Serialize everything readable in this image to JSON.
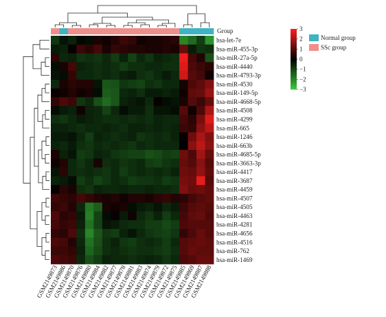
{
  "chart_data": {
    "type": "heatmap",
    "group_label": "Group",
    "rows": [
      "hsa-let-7e",
      "hsa-miR-455-3p",
      "hsa-miR-27a-5p",
      "hsa-miR-4440",
      "hsa-miR-4793-3p",
      "hsa-miR-4530",
      "hsa-miR-149-5p",
      "hsa-miR-4668-5p",
      "hsa-miR-4508",
      "hsa-miR-4299",
      "hsa-miR-665",
      "hsa-miR-1246",
      "hsa-miR-663b",
      "hsa-miR-4685-5p",
      "hsa-miR-3663-3p",
      "hsa-miR-4417",
      "hsa-miR-3687",
      "hsa-miR-4459",
      "hsa-miR-4507",
      "hsa-miR-4505",
      "hsa-miR-4463",
      "hsa-miR-4281",
      "hsa-miR-4656",
      "hsa-miR-4516",
      "hsa-miR-762",
      "hsa-miR-1469"
    ],
    "columns": [
      "GSM2149873",
      "GSM2149886",
      "GSM2149870",
      "GSM2149876",
      "GSM2149880",
      "GSM2149884",
      "GSM2149882",
      "GSM2149877",
      "GSM2149878",
      "GSM2149881",
      "GSM2149883",
      "GSM2149874",
      "GSM2149879",
      "GSM2149872",
      "GSM2149875",
      "GSM2149885",
      "GSM2149869",
      "GSM2149887",
      "GSM2149888"
    ],
    "column_groups": [
      "SSc group",
      "Normal group",
      "SSc group",
      "SSc group",
      "SSc group",
      "SSc group",
      "SSc group",
      "SSc group",
      "SSc group",
      "SSc group",
      "SSc group",
      "SSc group",
      "SSc group",
      "SSc group",
      "SSc group",
      "Normal group",
      "Normal group",
      "Normal group",
      "Normal group"
    ],
    "groups": [
      {
        "name": "Normal group",
        "color": "#3fb3c2"
      },
      {
        "name": "SSc group",
        "color": "#ef8f8c"
      }
    ],
    "color_scale": {
      "min": -3,
      "max": 3,
      "ticks": [
        "3",
        "2",
        "1",
        "0",
        "−1",
        "−2",
        "−3"
      ],
      "low_color": "#3cc73c",
      "mid_color": "#000000",
      "high_color": "#ff1f1f"
    },
    "values": [
      [
        -0.8,
        -0.3,
        -0.5,
        -0.1,
        -0.2,
        0.3,
        0.2,
        0.4,
        0.7,
        0.6,
        0.2,
        0.3,
        0.3,
        0.4,
        0.5,
        -2.0,
        -1.6,
        -0.9,
        -2.2
      ],
      [
        -0.4,
        -0.5,
        0.1,
        0.7,
        0.5,
        0.8,
        0.3,
        0.6,
        0.5,
        0.4,
        0.4,
        0.3,
        0.3,
        0.4,
        0.3,
        1.2,
        -0.4,
        -0.8,
        -0.7
      ],
      [
        0.5,
        -0.6,
        -0.5,
        -0.8,
        -0.7,
        -0.8,
        -0.6,
        -0.9,
        -0.5,
        -1.0,
        -0.6,
        -0.8,
        -0.5,
        -0.6,
        -0.7,
        2.8,
        0.8,
        0.4,
        -1.2
      ],
      [
        -0.2,
        0.3,
        0.8,
        -0.5,
        -0.6,
        -0.7,
        -0.6,
        -0.7,
        -0.9,
        -0.7,
        -0.7,
        -0.6,
        -0.6,
        -0.7,
        -0.7,
        2.6,
        0.9,
        0.7,
        0.5
      ],
      [
        -0.3,
        -0.2,
        0.6,
        -0.6,
        -0.6,
        -0.7,
        -0.6,
        -0.7,
        -0.5,
        -0.4,
        -0.7,
        -0.8,
        -0.6,
        -0.4,
        -0.6,
        2.4,
        1.0,
        0.8,
        0.2
      ],
      [
        -0.6,
        0.3,
        0.5,
        0.4,
        0.4,
        -0.3,
        -1.3,
        -1.2,
        -0.8,
        -0.9,
        -1.0,
        -0.7,
        -0.8,
        -0.6,
        -0.6,
        0.3,
        0.9,
        1.1,
        1.5
      ],
      [
        0.1,
        0.2,
        0.4,
        0.2,
        0.3,
        -0.2,
        -1.4,
        -1.3,
        -0.6,
        -0.5,
        -0.7,
        -0.4,
        -0.4,
        -0.5,
        -0.4,
        0.2,
        1.1,
        1.2,
        1.8
      ],
      [
        0.6,
        0.9,
        0.7,
        -0.8,
        -0.6,
        -1.2,
        -1.6,
        -1.3,
        -0.5,
        -0.4,
        -0.3,
        -0.6,
        0.1,
        -0.2,
        -0.3,
        0.3,
        1.0,
        0.7,
        1.2
      ],
      [
        -0.2,
        -0.4,
        -0.5,
        0.2,
        -0.5,
        -0.6,
        -1.0,
        -0.6,
        -0.2,
        -0.4,
        -0.4,
        -0.7,
        -0.3,
        -0.3,
        -0.2,
        1.0,
        0.2,
        0.9,
        2.0
      ],
      [
        -0.7,
        -0.8,
        -0.6,
        -0.4,
        -0.5,
        -0.6,
        -0.7,
        -0.7,
        -0.6,
        -0.7,
        -0.6,
        -0.7,
        -0.5,
        -0.6,
        -0.6,
        0.8,
        0.5,
        1.4,
        2.6
      ],
      [
        -0.5,
        -0.5,
        -0.6,
        -0.7,
        -0.6,
        -0.6,
        -0.5,
        -0.6,
        -0.7,
        -0.5,
        -0.5,
        -0.6,
        -0.5,
        -0.6,
        -0.5,
        0.7,
        0.6,
        1.6,
        2.2
      ],
      [
        -0.4,
        -0.4,
        -0.3,
        -0.6,
        -0.9,
        -0.5,
        -0.6,
        -0.7,
        -0.6,
        -0.5,
        -0.8,
        -0.7,
        -0.6,
        -0.7,
        -0.5,
        0.1,
        1.3,
        2.0,
        1.5
      ],
      [
        -0.5,
        -0.6,
        -0.4,
        -0.7,
        -0.8,
        -0.6,
        -0.7,
        -0.6,
        -0.7,
        -0.8,
        -0.6,
        -0.7,
        -0.6,
        -0.6,
        -0.6,
        0.0,
        1.6,
        2.2,
        1.6
      ],
      [
        0.3,
        -0.5,
        -0.3,
        -0.9,
        -0.8,
        -0.5,
        -0.6,
        -0.8,
        -0.9,
        -1.0,
        -1.0,
        -1.2,
        -1.1,
        -0.9,
        -1.0,
        1.3,
        0.9,
        1.9,
        1.2
      ],
      [
        0.2,
        0.4,
        -0.6,
        -0.8,
        -0.6,
        0.3,
        -0.7,
        -0.6,
        -0.8,
        -0.7,
        -0.6,
        -0.9,
        -1.0,
        -0.8,
        -0.7,
        1.2,
        1.0,
        1.6,
        1.0
      ],
      [
        -0.3,
        0.5,
        -0.6,
        -0.7,
        -0.6,
        -0.7,
        -0.8,
        -0.6,
        -0.9,
        -0.7,
        -0.6,
        -0.7,
        -0.6,
        -0.7,
        -0.5,
        1.3,
        1.2,
        1.7,
        1.1
      ],
      [
        -0.5,
        -0.4,
        -0.2,
        -0.9,
        -0.7,
        -1.0,
        -0.8,
        -0.6,
        -0.7,
        -0.9,
        -0.8,
        -0.8,
        -0.7,
        -0.9,
        -0.8,
        1.4,
        1.3,
        2.7,
        1.0
      ],
      [
        0.1,
        0.5,
        0.3,
        -0.7,
        -0.8,
        -0.5,
        -0.6,
        -0.6,
        -0.5,
        -0.6,
        -0.6,
        -0.5,
        -0.6,
        -0.6,
        -0.7,
        1.5,
        1.2,
        1.3,
        1.1
      ],
      [
        0.7,
        0.6,
        0.5,
        0.8,
        0.6,
        0.4,
        0.3,
        0.4,
        0.2,
        0.4,
        0.4,
        0.3,
        0.5,
        0.6,
        0.4,
        0.5,
        0.8,
        1.0,
        1.1
      ],
      [
        0.6,
        0.7,
        0.4,
        -0.6,
        -1.8,
        -1.4,
        0.3,
        0.2,
        0.3,
        -0.2,
        -0.4,
        -0.5,
        -0.3,
        -0.6,
        -0.4,
        0.7,
        1.0,
        1.1,
        1.0
      ],
      [
        0.9,
        0.5,
        0.6,
        -0.4,
        -1.9,
        -1.0,
        -0.2,
        0.1,
        -0.4,
        0.2,
        -0.6,
        -0.8,
        -0.5,
        -0.9,
        -0.6,
        0.8,
        1.1,
        1.2,
        0.9
      ],
      [
        0.8,
        0.6,
        0.7,
        -0.5,
        -1.7,
        -1.0,
        -0.3,
        -0.4,
        -0.6,
        -0.7,
        -0.7,
        -0.9,
        -0.9,
        -1.1,
        -0.9,
        0.9,
        1.0,
        1.0,
        1.0
      ],
      [
        0.6,
        0.5,
        0.9,
        -0.7,
        -2.0,
        -1.3,
        -0.8,
        -0.9,
        -0.5,
        -0.3,
        -0.6,
        -0.8,
        -0.9,
        -1.0,
        -0.8,
        0.6,
        0.9,
        1.2,
        1.0
      ],
      [
        0.9,
        0.8,
        0.4,
        -0.6,
        -1.7,
        -1.2,
        -0.7,
        -0.5,
        -0.8,
        -0.9,
        -0.7,
        -0.6,
        -0.7,
        -0.9,
        -0.6,
        1.0,
        1.1,
        1.2,
        1.1
      ],
      [
        0.7,
        0.7,
        0.6,
        -0.5,
        -1.5,
        -1.1,
        -0.7,
        -0.6,
        -0.7,
        -0.8,
        -0.7,
        -0.7,
        -0.8,
        -0.9,
        -0.7,
        1.0,
        1.2,
        1.1,
        1.1
      ],
      [
        0.9,
        0.8,
        0.7,
        -0.6,
        -1.2,
        -0.9,
        -0.5,
        -0.6,
        -0.6,
        -0.7,
        -0.6,
        -0.5,
        -0.6,
        -0.8,
        -0.6,
        0.9,
        1.0,
        1.2,
        1.2
      ]
    ]
  }
}
